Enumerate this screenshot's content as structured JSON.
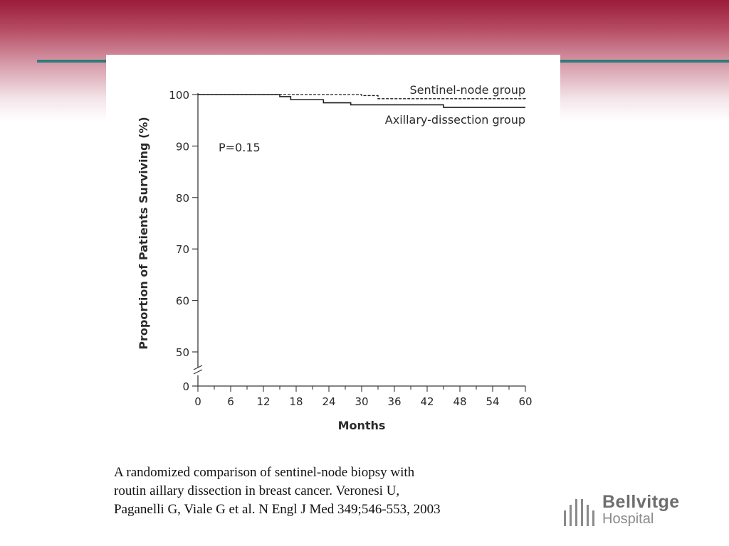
{
  "slide": {
    "caption_lines": [
      "A randomized comparison of sentinel-node biopsy with",
      "routin aillary dissection in breast cancer. Veronesi U,",
      "Paganelli G, Viale G et al. N Engl J Med 349;546-553, 2003"
    ],
    "logo": {
      "name": "Bellvitge",
      "subtitle": "Hospital"
    },
    "colors": {
      "banner": "#9b1b3a",
      "accent_line": "#2e7c7c",
      "logo_gray": "#8a8a8a"
    }
  },
  "chart_data": {
    "type": "line",
    "title": "",
    "xlabel": "Months",
    "ylabel": "Proportion of Patients Surviving (%)",
    "x_ticks": [
      0,
      6,
      12,
      18,
      24,
      30,
      36,
      42,
      48,
      54,
      60
    ],
    "y_ticks": [
      0,
      50,
      60,
      70,
      80,
      90,
      100
    ],
    "xlim": [
      0,
      60
    ],
    "ylim": [
      0,
      100
    ],
    "y_axis_break": "between 0 and 50",
    "grid": false,
    "annotations": [
      "P=0.15"
    ],
    "series": [
      {
        "name": "Sentinel-node group",
        "style": "dashed",
        "x": [
          0,
          15,
          30,
          33,
          60
        ],
        "y": [
          100,
          100,
          99.8,
          99.2,
          98.9
        ]
      },
      {
        "name": "Axillary-dissection group",
        "style": "solid",
        "x": [
          0,
          15,
          17,
          23,
          28,
          45,
          60
        ],
        "y": [
          100,
          99.6,
          99.0,
          98.4,
          98.0,
          97.5,
          97.5
        ]
      }
    ]
  }
}
